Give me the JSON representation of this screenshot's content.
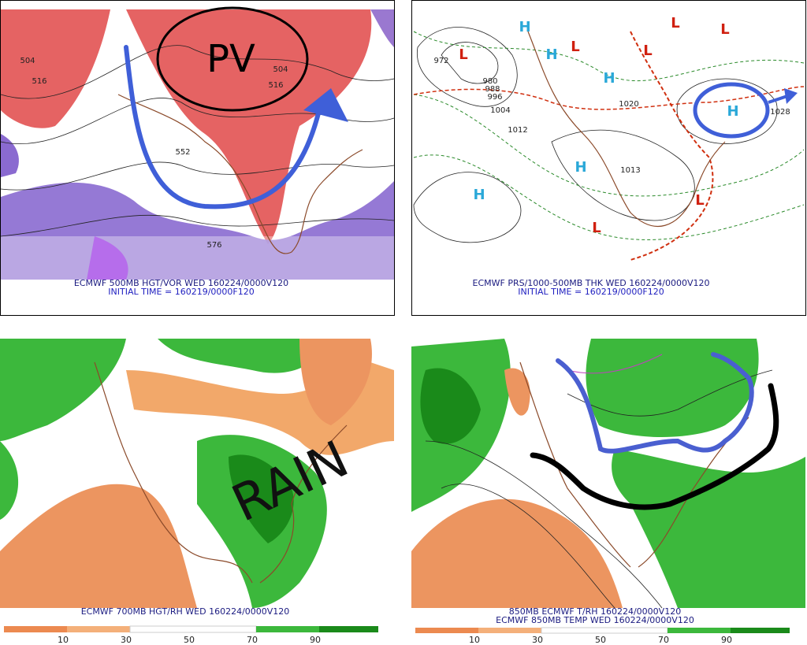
{
  "panels": [
    {
      "caption": "ECMWF 500MB HGT/VOR WED 160224/0000V120",
      "initial_time": "INITIAL TIME = 160219/0000F120",
      "annotation": "PV",
      "labels": [
        "504",
        "516",
        "552",
        "576",
        "516",
        "504"
      ]
    },
    {
      "caption": "ECMWF PRS/1000-500MB THK WED 160224/0000V120",
      "initial_time": "INITIAL TIME = 160219/0000F120",
      "highs": [
        "H",
        "H",
        "H",
        "H",
        "H",
        "H"
      ],
      "lows": [
        "L",
        "L",
        "L",
        "L",
        "L",
        "L",
        "L"
      ],
      "labels": [
        "972",
        "980",
        "988",
        "996",
        "1004",
        "1012",
        "1020",
        "1028",
        "1013"
      ]
    },
    {
      "caption": "ECMWF 700MB HGT/RH WED 160224/0000V120",
      "annotation": "RAIN",
      "colorbar_labels": [
        "10",
        "30",
        "50",
        "70",
        "90"
      ]
    },
    {
      "caption": "850MB ECMWF T/RH 160224/0000V120",
      "caption2": "ECMWF 850MB TEMP WED 160224/0000V120",
      "colorbar_labels": [
        "10",
        "30",
        "50",
        "70",
        "90"
      ]
    }
  ]
}
